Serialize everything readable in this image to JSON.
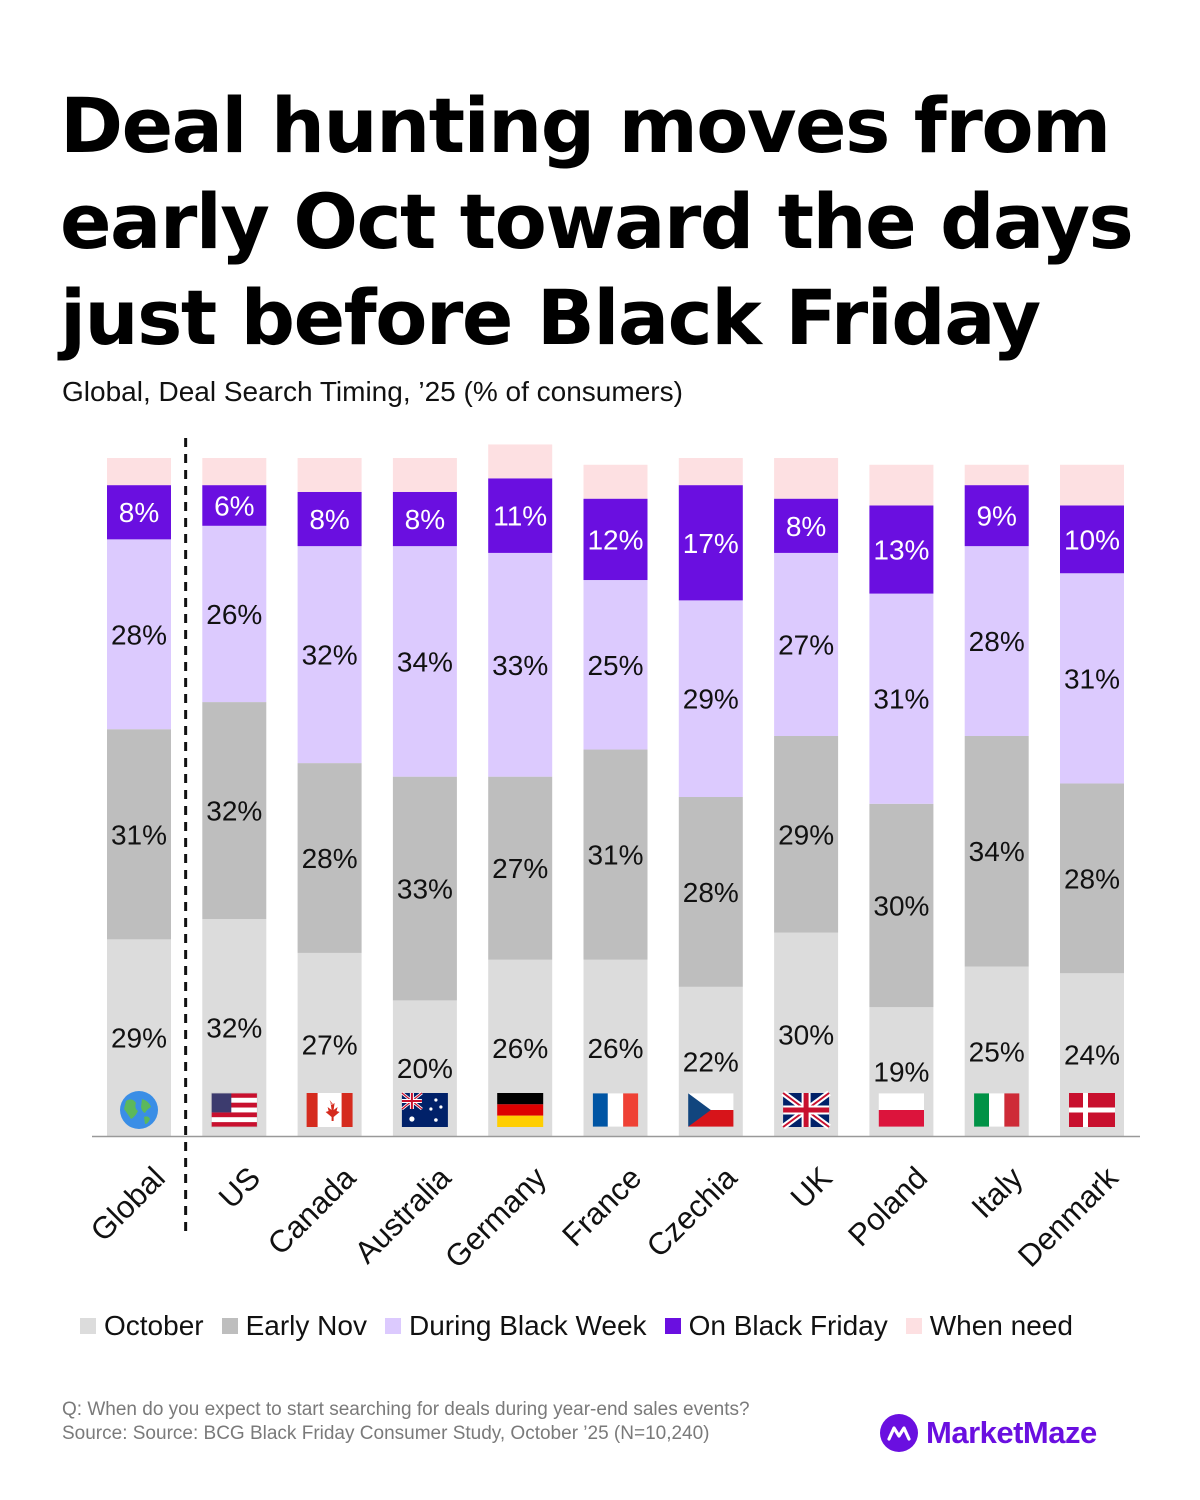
{
  "header": {
    "title": "Deal hunting moves from early Oct toward the days just before Black Friday",
    "subtitle": "Global, Deal Search Timing, ’25 (% of consumers)"
  },
  "chart_data": {
    "type": "bar",
    "stacked": true,
    "unit": "%",
    "categories": [
      "Global",
      "US",
      "Canada",
      "Australia",
      "Germany",
      "France",
      "Czechia",
      "UK",
      "Poland",
      "Italy",
      "Denmark"
    ],
    "category_icons": [
      "globe-icon",
      "flag-us-icon",
      "flag-canada-icon",
      "flag-australia-icon",
      "flag-germany-icon",
      "flag-france-icon",
      "flag-czechia-icon",
      "flag-uk-icon",
      "flag-poland-icon",
      "flag-italy-icon",
      "flag-denmark-icon"
    ],
    "series": [
      {
        "name": "October",
        "color": "#dcdcdc",
        "values": [
          29,
          32,
          27,
          20,
          26,
          26,
          22,
          30,
          19,
          25,
          24
        ]
      },
      {
        "name": "Early Nov",
        "color": "#bebebe",
        "values": [
          31,
          32,
          28,
          33,
          27,
          31,
          28,
          29,
          30,
          34,
          28
        ]
      },
      {
        "name": "During Black Week",
        "color": "#dccafe",
        "values": [
          28,
          26,
          32,
          34,
          33,
          25,
          29,
          27,
          31,
          28,
          31
        ]
      },
      {
        "name": "On Black Friday",
        "color": "#6a0fe0",
        "values": [
          8,
          6,
          8,
          8,
          11,
          12,
          17,
          8,
          13,
          9,
          10
        ]
      },
      {
        "name": "When need",
        "color": "#fde0e2",
        "values": [
          4,
          4,
          5,
          5,
          5,
          5,
          4,
          6,
          6,
          3,
          6
        ]
      }
    ],
    "data_labels": {
      "October": [
        "29%",
        "32%",
        "27%",
        "20%",
        "26%",
        "26%",
        "22%",
        "30%",
        "19%",
        "25%",
        "24%"
      ],
      "Early Nov": [
        "31%",
        "32%",
        "28%",
        "33%",
        "27%",
        "31%",
        "28%",
        "29%",
        "30%",
        "34%",
        "28%"
      ],
      "During Black Week": [
        "28%",
        "26%",
        "32%",
        "34%",
        "33%",
        "25%",
        "29%",
        "27%",
        "31%",
        "28%",
        "31%"
      ],
      "On Black Friday": [
        "8%",
        "6%",
        "8%",
        "8%",
        "11%",
        "12%",
        "17%",
        "8%",
        "13%",
        "9%",
        "10%"
      ]
    },
    "ylim": [
      0,
      100
    ],
    "grid": false,
    "legend_position": "bottom",
    "divider_after": "Global"
  },
  "legend": {
    "items": [
      {
        "label": "October",
        "color": "#dcdcdc"
      },
      {
        "label": "Early Nov",
        "color": "#bebebe"
      },
      {
        "label": "During Black Week",
        "color": "#dccafe"
      },
      {
        "label": "On Black Friday",
        "color": "#6a0fe0"
      },
      {
        "label": "When need",
        "color": "#fde0e2"
      }
    ]
  },
  "footer": {
    "question": "Q: When do you expect to start searching for deals during year-end sales events?",
    "source": "Source: Source: BCG Black Friday Consumer Study, October ’25 (N=10,240)"
  },
  "brand": {
    "name": "MarketMaze",
    "color": "#6a0fe0"
  }
}
